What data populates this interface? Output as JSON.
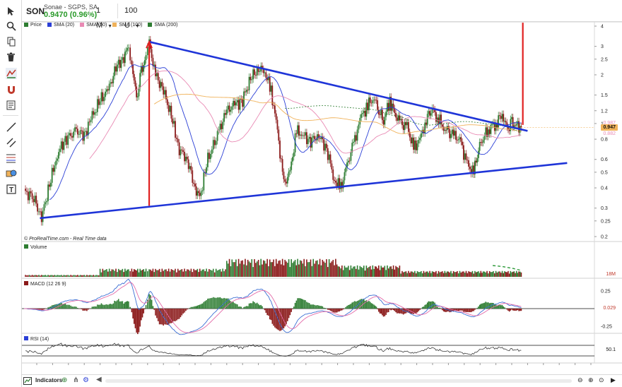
{
  "header": {
    "ticker": "SON",
    "company": "Sonae - SGPS, SA",
    "last_price": "0.9470 (0.96%)",
    "interval": "1 M",
    "units": "100 U"
  },
  "legend": {
    "items": [
      {
        "label": "Price",
        "color": "#2e7d32"
      },
      {
        "label": "SMA (20)",
        "color": "#2b3fd6"
      },
      {
        "label": "SMA (50)",
        "color": "#e98ab4"
      },
      {
        "label": "SMA (100)",
        "color": "#f0b25a"
      },
      {
        "label": "SMA (200)",
        "color": "#2e7d32"
      }
    ]
  },
  "attribution": {
    "source": "© ProRealTime.com",
    "realtime": "- Real Time data"
  },
  "indicators": {
    "volume_label": "Volume",
    "volume_value": "18M",
    "macd_label": "MACD (12 26 9)",
    "macd_value": "0.029",
    "rsi_label": "RSI (14)",
    "rsi_value": "50.1"
  },
  "price_tags": {
    "current": "0.947",
    "sma_upper": "0.987",
    "sma_lower": "0.882"
  },
  "bottombar": {
    "indicators_label": "Indicators"
  },
  "colors": {
    "up": "#2e7d32",
    "down": "#8b1a1a",
    "trendline": "#1f35d8",
    "marker": "#e02020",
    "accent_green": "#2a9a2a",
    "sma20": "#2b3fd6",
    "sma50": "#e98ab4",
    "sma100": "#f0b25a",
    "macd_line": "#3b6fd4",
    "signal_line": "#e36aa8",
    "rsi_line": "#222222"
  },
  "chart_data": {
    "type": "line",
    "title": "SON",
    "price_axis": {
      "scale": "log",
      "ticks": [
        0.2,
        0.25,
        0.3,
        0.4,
        0.5,
        0.6,
        0.8,
        1,
        1.2,
        1.5,
        2,
        2.5,
        3,
        4
      ],
      "tick_labels": [
        "0.2",
        "0.25",
        "0.3",
        "0.4",
        "0.5",
        "0.6",
        "0.8",
        "1",
        "1.2",
        "1.5",
        "2",
        "2.5",
        "3",
        "4"
      ]
    },
    "time_axis": {
      "ticks": [
        1993,
        1994,
        1995,
        1996,
        1997,
        1998,
        1999,
        2000,
        2001,
        2002,
        2003,
        2004,
        2005,
        2006,
        2007,
        2008,
        2009,
        2010,
        2011,
        2012,
        2013,
        2014,
        2015,
        2016,
        2017,
        2018,
        2019,
        2020,
        2021,
        2022,
        2023,
        2024,
        2025,
        2026,
        2027,
        2028
      ],
      "tick_labels": [
        "1993",
        "1994",
        "1995",
        "1996",
        "1997",
        "1998",
        "1999",
        "2000",
        "2001",
        "2002",
        "2003",
        "2004",
        "2005",
        "2006",
        "2007",
        "2008",
        "2009",
        "2010",
        "2011",
        "2012",
        "2013",
        "2014",
        "2015",
        "2016",
        "2017",
        "2018",
        "2019",
        "2020",
        "2021",
        "2022",
        "2023",
        "2024",
        "2025",
        "2026",
        "2027",
        "2028"
      ]
    },
    "series": [
      {
        "name": "Price",
        "x": [
          1992.2,
          1992.8,
          1993.3,
          1993.8,
          1994.3,
          1994.8,
          1995.5,
          1996.0,
          1996.5,
          1997.0,
          1997.5,
          1998.0,
          1998.5,
          1998.8,
          1999.0,
          1999.3,
          1999.6,
          1999.9,
          2000.1,
          2000.5,
          2001.0,
          2001.5,
          2002.0,
          2002.5,
          2003.0,
          2003.3,
          2003.8,
          2004.5,
          2005.0,
          2005.5,
          2006.0,
          2006.5,
          2007.0,
          2007.4,
          2007.8,
          2008.2,
          2008.6,
          2009.0,
          2009.4,
          2009.8,
          2010.3,
          2010.8,
          2011.3,
          2011.8,
          2012.2,
          2012.6,
          2013.0,
          2013.5,
          2013.9,
          2014.3,
          2014.6,
          2014.9,
          2015.3,
          2015.6,
          2016.0,
          2016.4,
          2016.8,
          2017.2,
          2017.6,
          2017.9,
          2018.3,
          2018.7,
          2019.0,
          2019.4,
          2019.8,
          2020.2,
          2020.6,
          2020.9,
          2021.2,
          2021.6,
          2022.0,
          2022.4,
          2022.7,
          2023.0,
          2023.3,
          2023.6
        ],
        "values": [
          0.38,
          0.35,
          0.26,
          0.42,
          0.65,
          0.8,
          0.9,
          0.85,
          1.1,
          1.4,
          1.6,
          2.2,
          2.6,
          2.95,
          2.4,
          1.4,
          2.1,
          2.6,
          3.1,
          2.0,
          1.6,
          1.1,
          0.7,
          0.6,
          0.4,
          0.35,
          0.6,
          0.9,
          1.2,
          1.3,
          1.4,
          1.9,
          2.2,
          2.1,
          1.6,
          0.9,
          0.42,
          0.5,
          0.9,
          0.85,
          0.78,
          0.85,
          0.7,
          0.45,
          0.4,
          0.55,
          0.75,
          1.1,
          1.3,
          1.45,
          1.2,
          1.05,
          1.4,
          1.15,
          1.0,
          0.95,
          0.7,
          0.8,
          1.05,
          1.25,
          1.1,
          0.95,
          0.88,
          0.85,
          0.75,
          0.55,
          0.5,
          0.7,
          0.82,
          0.95,
          1.0,
          1.15,
          0.92,
          1.0,
          0.98,
          0.947
        ]
      }
    ],
    "trendlines": [
      {
        "label": "upper",
        "from": [
          2000.1,
          3.2
        ],
        "to": [
          2024.0,
          0.9
        ]
      },
      {
        "label": "lower",
        "from": [
          1993.2,
          0.26
        ],
        "to": [
          2026.5,
          0.57
        ]
      }
    ],
    "markers": [
      {
        "label": "2000 peak",
        "x": 2000.1,
        "from": 0.31,
        "to": 3.2
      },
      {
        "label": "projection",
        "x": 2023.7,
        "from": 0.98,
        "to": 4.2
      }
    ],
    "current_price": 0.947
  }
}
